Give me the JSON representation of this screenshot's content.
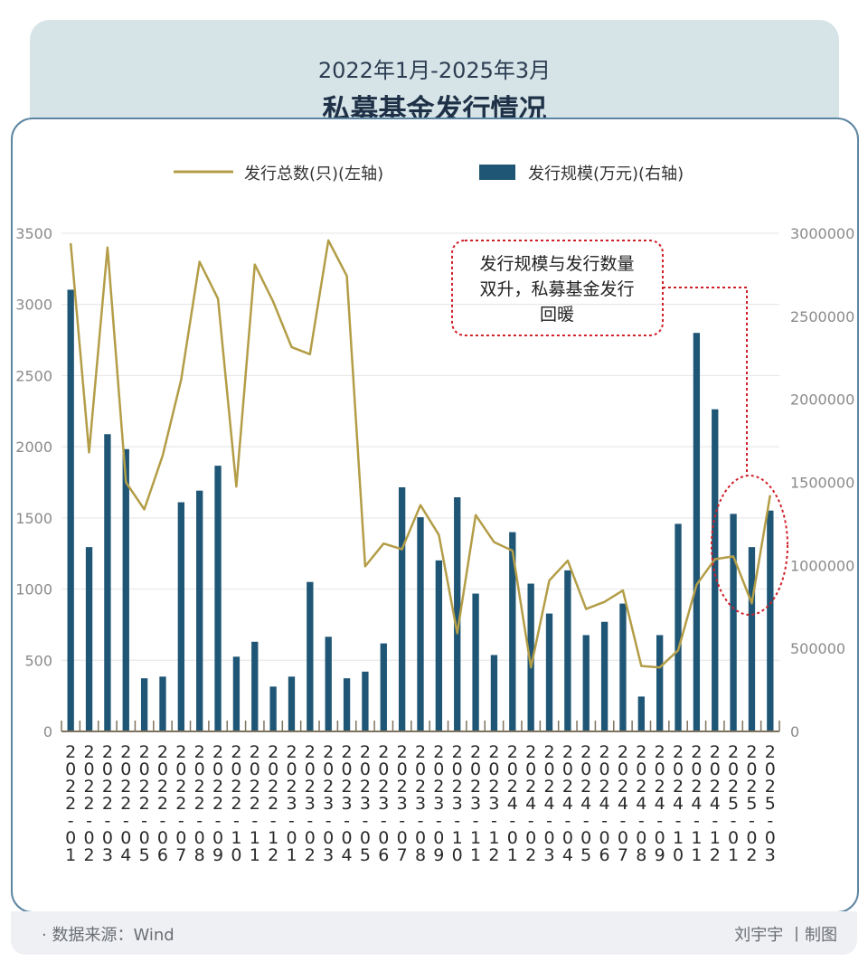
{
  "header": {
    "subtitle": "2022年1月-2025年3月",
    "title": "私募基金发行情况"
  },
  "legend": {
    "line_label": "发行总数(只)(左轴)",
    "bar_label": "发行规模(万元)(右轴)"
  },
  "annotation": {
    "line1": "发行规模与发行数量",
    "line2": "双升，私募基金发行",
    "line3": "回暖"
  },
  "footer": {
    "source": "· 数据来源：Wind",
    "credit": "刘宇宇 丨制图"
  },
  "colors": {
    "line": "#b39d47",
    "bar": "#1f5675",
    "annotation": "#d0202a",
    "grid": "#e4e4e4",
    "axis": "#7f7360"
  },
  "chart_data": {
    "type": "bar",
    "categories": [
      "2022-01",
      "2022-02",
      "2022-03",
      "2022-04",
      "2022-05",
      "2022-06",
      "2022-07",
      "2022-08",
      "2022-09",
      "2022-10",
      "2022-11",
      "2022-12",
      "2023-01",
      "2023-02",
      "2023-03",
      "2023-04",
      "2023-05",
      "2023-06",
      "2023-07",
      "2023-08",
      "2023-09",
      "2023-10",
      "2023-11",
      "2023-12",
      "2024-01",
      "2024-02",
      "2024-03",
      "2024-04",
      "2024-05",
      "2024-06",
      "2024-07",
      "2024-08",
      "2024-09",
      "2024-10",
      "2024-11",
      "2024-12",
      "2025-01",
      "2025-02",
      "2025-03"
    ],
    "series": [
      {
        "name": "发行总数(只)(左轴)",
        "type": "line",
        "axis": "left",
        "values": [
          3430,
          1960,
          3400,
          1750,
          1560,
          1940,
          2470,
          3300,
          3040,
          1720,
          3280,
          3020,
          2700,
          2650,
          3450,
          3200,
          1160,
          1320,
          1280,
          1590,
          1380,
          690,
          1520,
          1330,
          1270,
          450,
          1060,
          1200,
          860,
          910,
          990,
          460,
          450,
          570,
          1030,
          1210,
          1230,
          900,
          1660
        ]
      },
      {
        "name": "发行规模(万元)(右轴)",
        "type": "bar",
        "axis": "right",
        "values": [
          2660000,
          1110000,
          1790000,
          1700000,
          320000,
          330000,
          1380000,
          1450000,
          1600000,
          450000,
          540000,
          270000,
          330000,
          900000,
          570000,
          320000,
          360000,
          530000,
          1470000,
          1290000,
          1030000,
          1410000,
          830000,
          460000,
          1200000,
          890000,
          710000,
          970000,
          580000,
          660000,
          770000,
          210000,
          580000,
          1250000,
          2400000,
          1940000,
          1310000,
          1110000,
          1330000
        ]
      }
    ],
    "y_left": {
      "min": 0,
      "max": 3500,
      "ticks": [
        0,
        500,
        1000,
        1500,
        2000,
        2500,
        3000,
        3500
      ]
    },
    "y_right": {
      "min": 0,
      "max": 3000000,
      "ticks": [
        0,
        500000,
        1000000,
        1500000,
        2000000,
        2500000,
        3000000
      ]
    },
    "grid": true,
    "legend_position": "top"
  }
}
